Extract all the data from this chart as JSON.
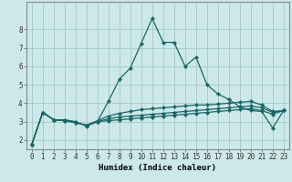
{
  "xlabel": "Humidex (Indice chaleur)",
  "bg_color": "#cce8e8",
  "grid_color": "#aacccc",
  "line_color": "#1a6666",
  "x_values": [
    0,
    1,
    2,
    3,
    4,
    5,
    6,
    7,
    8,
    9,
    10,
    11,
    12,
    13,
    14,
    15,
    16,
    17,
    18,
    19,
    20,
    21,
    22,
    23
  ],
  "series": [
    [
      1.75,
      3.5,
      3.1,
      3.1,
      3.0,
      2.75,
      3.0,
      4.1,
      5.3,
      5.9,
      7.25,
      8.6,
      7.3,
      7.3,
      6.0,
      6.5,
      5.0,
      4.5,
      4.2,
      3.8,
      3.6,
      3.55,
      2.65,
      3.6
    ],
    [
      1.75,
      3.5,
      3.1,
      3.05,
      2.95,
      2.8,
      3.05,
      3.3,
      3.45,
      3.55,
      3.65,
      3.7,
      3.75,
      3.8,
      3.85,
      3.9,
      3.9,
      3.95,
      4.0,
      4.05,
      4.1,
      3.9,
      3.55,
      3.6
    ],
    [
      1.75,
      3.5,
      3.1,
      3.05,
      2.95,
      2.8,
      3.0,
      3.15,
      3.25,
      3.3,
      3.35,
      3.4,
      3.45,
      3.5,
      3.55,
      3.6,
      3.65,
      3.7,
      3.75,
      3.8,
      3.85,
      3.75,
      3.5,
      3.6
    ],
    [
      1.75,
      3.5,
      3.1,
      3.05,
      2.95,
      2.8,
      3.0,
      3.05,
      3.1,
      3.15,
      3.2,
      3.25,
      3.3,
      3.35,
      3.4,
      3.45,
      3.5,
      3.55,
      3.6,
      3.65,
      3.7,
      3.6,
      3.4,
      3.6
    ]
  ],
  "ylim": [
    1.5,
    9.5
  ],
  "yticks": [
    2,
    3,
    4,
    5,
    6,
    7,
    8
  ],
  "xlim": [
    -0.5,
    23.5
  ],
  "xticks": [
    0,
    1,
    2,
    3,
    4,
    5,
    6,
    7,
    8,
    9,
    10,
    11,
    12,
    13,
    14,
    15,
    16,
    17,
    18,
    19,
    20,
    21,
    22,
    23
  ],
  "tick_fontsize": 5.5,
  "xlabel_fontsize": 6.5,
  "linewidth": 0.9,
  "markersize": 2.2
}
